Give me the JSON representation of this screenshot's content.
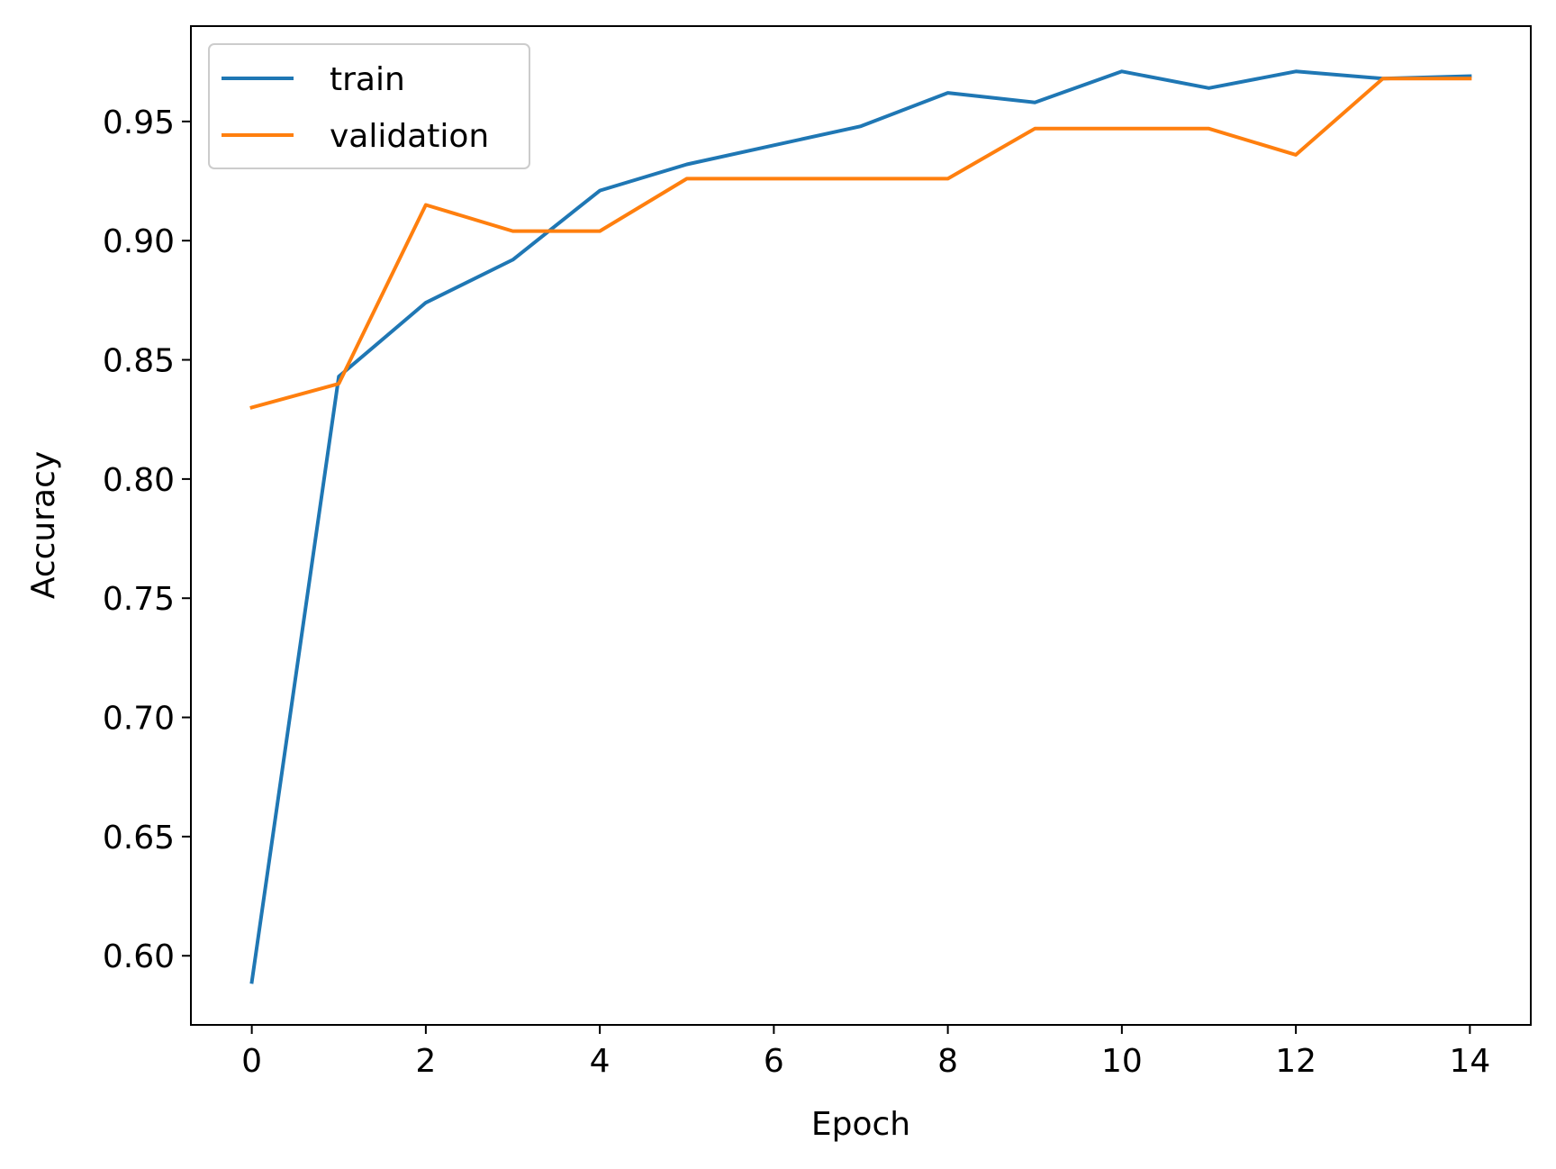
{
  "chart_data": {
    "type": "line",
    "xlabel": "Epoch",
    "ylabel": "Accuracy",
    "x": [
      0,
      1,
      2,
      3,
      4,
      5,
      6,
      7,
      8,
      9,
      10,
      11,
      12,
      13,
      14
    ],
    "xlim": [
      -0.7,
      14.7
    ],
    "ylim": [
      0.571,
      0.99
    ],
    "xticks": [
      0,
      2,
      4,
      6,
      8,
      10,
      12,
      14
    ],
    "xtick_labels": [
      "0",
      "2",
      "4",
      "6",
      "8",
      "10",
      "12",
      "14"
    ],
    "yticks": [
      0.6,
      0.65,
      0.7,
      0.75,
      0.8,
      0.85,
      0.9,
      0.95
    ],
    "ytick_labels": [
      "0.60",
      "0.65",
      "0.70",
      "0.75",
      "0.80",
      "0.85",
      "0.90",
      "0.95"
    ],
    "grid": false,
    "legend_position": "top-left",
    "series": [
      {
        "name": "train",
        "color": "#1f77b4",
        "values": [
          0.589,
          0.843,
          0.874,
          0.892,
          0.921,
          0.932,
          0.94,
          0.948,
          0.962,
          0.958,
          0.971,
          0.964,
          0.971,
          0.968,
          0.969
        ]
      },
      {
        "name": "validation",
        "color": "#ff7f0e",
        "values": [
          0.83,
          0.84,
          0.915,
          0.904,
          0.904,
          0.926,
          0.926,
          0.926,
          0.926,
          0.947,
          0.947,
          0.947,
          0.936,
          0.968,
          0.968
        ]
      }
    ]
  }
}
